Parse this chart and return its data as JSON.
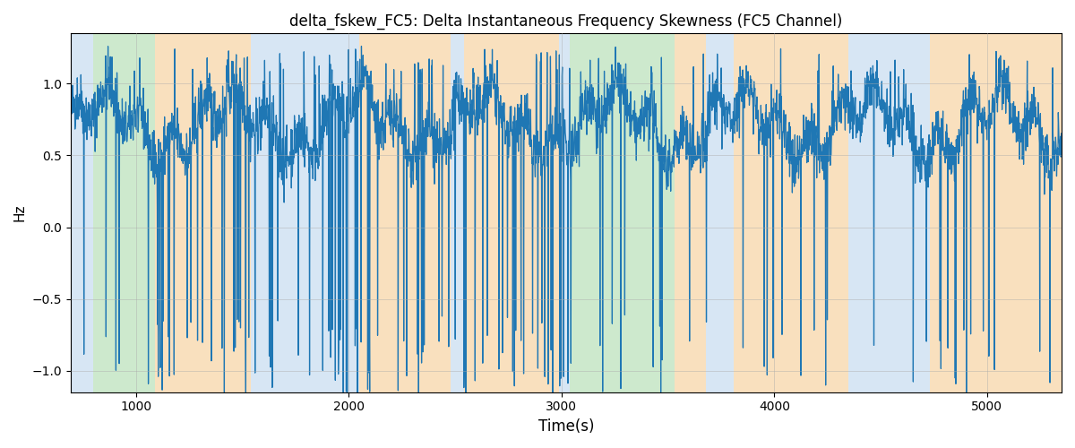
{
  "title": "delta_fskew_FC5: Delta Instantaneous Frequency Skewness (FC5 Channel)",
  "xlabel": "Time(s)",
  "ylabel": "Hz",
  "xlim": [
    693,
    5350
  ],
  "ylim": [
    -1.15,
    1.35
  ],
  "yticks": [
    -1.0,
    -0.5,
    0.0,
    0.5,
    1.0
  ],
  "xticks": [
    1000,
    2000,
    3000,
    4000,
    5000
  ],
  "figsize": [
    12,
    5
  ],
  "dpi": 100,
  "line_color": "#1f77b4",
  "line_width": 0.9,
  "background_color": "#ffffff",
  "grid_color": "#aaaaaa",
  "grid_alpha": 0.6,
  "bands": [
    {
      "xmin": 693,
      "xmax": 800,
      "color": "#a8c8e8",
      "alpha": 0.45
    },
    {
      "xmin": 800,
      "xmax": 1090,
      "color": "#90d090",
      "alpha": 0.45
    },
    {
      "xmin": 1090,
      "xmax": 1540,
      "color": "#f5c88a",
      "alpha": 0.55
    },
    {
      "xmin": 1540,
      "xmax": 1620,
      "color": "#a8c8e8",
      "alpha": 0.45
    },
    {
      "xmin": 1620,
      "xmax": 2050,
      "color": "#a8c8e8",
      "alpha": 0.45
    },
    {
      "xmin": 2050,
      "xmax": 2480,
      "color": "#f5c88a",
      "alpha": 0.55
    },
    {
      "xmin": 2480,
      "xmax": 2540,
      "color": "#a8c8e8",
      "alpha": 0.45
    },
    {
      "xmin": 2540,
      "xmax": 2990,
      "color": "#f5c88a",
      "alpha": 0.55
    },
    {
      "xmin": 2990,
      "xmax": 3040,
      "color": "#a8c8e8",
      "alpha": 0.45
    },
    {
      "xmin": 3040,
      "xmax": 3530,
      "color": "#90d090",
      "alpha": 0.45
    },
    {
      "xmin": 3530,
      "xmax": 3680,
      "color": "#f5c88a",
      "alpha": 0.55
    },
    {
      "xmin": 3680,
      "xmax": 3810,
      "color": "#a8c8e8",
      "alpha": 0.45
    },
    {
      "xmin": 3810,
      "xmax": 4350,
      "color": "#f5c88a",
      "alpha": 0.55
    },
    {
      "xmin": 4350,
      "xmax": 4730,
      "color": "#a8c8e8",
      "alpha": 0.45
    },
    {
      "xmin": 4730,
      "xmax": 5350,
      "color": "#f5c88a",
      "alpha": 0.55
    }
  ],
  "seed": 42
}
